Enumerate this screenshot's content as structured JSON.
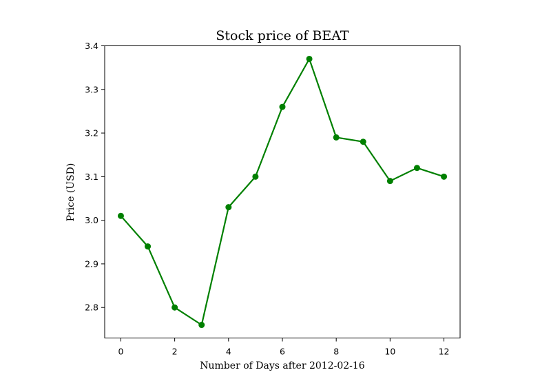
{
  "chart_data": {
    "type": "line",
    "title": "Stock price of BEAT",
    "xlabel": "Number of Days after 2012-02-16",
    "ylabel": "Price (USD)",
    "x": [
      0,
      1,
      2,
      3,
      4,
      5,
      6,
      7,
      8,
      9,
      10,
      11,
      12
    ],
    "series": [
      {
        "values": [
          3.01,
          2.94,
          2.8,
          2.76,
          3.03,
          3.1,
          3.26,
          3.37,
          3.19,
          3.18,
          3.09,
          3.12,
          3.1
        ],
        "color": "#008000",
        "marker": "circle"
      }
    ],
    "xticks": [
      "0",
      "2",
      "4",
      "6",
      "8",
      "10",
      "12"
    ],
    "yticks": [
      "2.8",
      "2.9",
      "3.0",
      "3.1",
      "3.2",
      "3.3",
      "3.4"
    ],
    "xlim": [
      -0.6,
      12.6
    ],
    "ylim": [
      2.73,
      3.4
    ],
    "grid": false,
    "legend": false
  }
}
